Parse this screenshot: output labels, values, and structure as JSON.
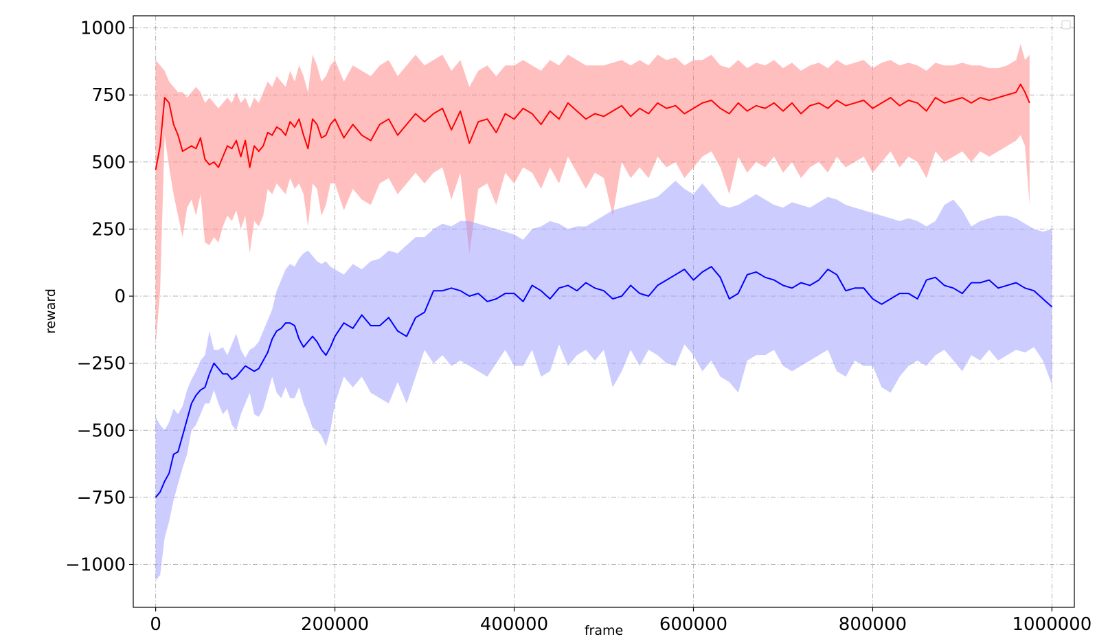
{
  "chart_data": {
    "type": "line",
    "title": "",
    "xlabel": "frame",
    "ylabel": "reward",
    "xlim": [
      -25000,
      1025000
    ],
    "ylim": [
      -1160,
      1045
    ],
    "grid": true,
    "grid_style": "dash-dot",
    "legend": {
      "placement": "top-right",
      "entries": []
    },
    "x_ticks": [
      {
        "value": 0,
        "label": "0"
      },
      {
        "value": 200000,
        "label": "200000"
      },
      {
        "value": 400000,
        "label": "400000"
      },
      {
        "value": 600000,
        "label": "600000"
      },
      {
        "value": 800000,
        "label": "800000"
      },
      {
        "value": 1000000,
        "label": "1000000"
      }
    ],
    "y_ticks": [
      {
        "value": 1000,
        "label": "1000"
      },
      {
        "value": 750,
        "label": "750"
      },
      {
        "value": 500,
        "label": "500"
      },
      {
        "value": 250,
        "label": "250"
      },
      {
        "value": 0,
        "label": "0"
      },
      {
        "value": -250,
        "label": "−250"
      },
      {
        "value": -500,
        "label": "−500"
      },
      {
        "value": -750,
        "label": "−750"
      },
      {
        "value": -1000,
        "label": "−1000"
      }
    ],
    "series": [
      {
        "color": "#ff0000",
        "band_color": "#ff8080",
        "x": [
          0,
          5000,
          10000,
          15000,
          20000,
          25000,
          30000,
          35000,
          40000,
          45000,
          50000,
          55000,
          60000,
          65000,
          70000,
          75000,
          80000,
          85000,
          90000,
          95000,
          100000,
          105000,
          110000,
          115000,
          120000,
          125000,
          130000,
          135000,
          140000,
          145000,
          150000,
          155000,
          160000,
          165000,
          170000,
          175000,
          180000,
          185000,
          190000,
          195000,
          200000,
          210000,
          220000,
          230000,
          240000,
          250000,
          260000,
          270000,
          280000,
          290000,
          300000,
          310000,
          320000,
          330000,
          340000,
          350000,
          360000,
          370000,
          380000,
          390000,
          400000,
          410000,
          420000,
          430000,
          440000,
          450000,
          460000,
          470000,
          480000,
          490000,
          500000,
          510000,
          520000,
          530000,
          540000,
          550000,
          560000,
          570000,
          580000,
          590000,
          600000,
          610000,
          620000,
          630000,
          640000,
          650000,
          660000,
          670000,
          680000,
          690000,
          700000,
          710000,
          720000,
          730000,
          740000,
          750000,
          760000,
          770000,
          780000,
          790000,
          800000,
          810000,
          820000,
          830000,
          840000,
          850000,
          860000,
          870000,
          880000,
          890000,
          900000,
          910000,
          920000,
          930000,
          940000,
          950000,
          960000,
          965000,
          970000,
          975000
        ],
        "mean": [
          470,
          560,
          740,
          720,
          640,
          600,
          540,
          550,
          560,
          550,
          590,
          510,
          490,
          500,
          480,
          520,
          560,
          550,
          580,
          520,
          580,
          480,
          560,
          540,
          560,
          610,
          600,
          630,
          620,
          600,
          650,
          630,
          660,
          600,
          550,
          660,
          640,
          590,
          600,
          640,
          660,
          590,
          640,
          600,
          580,
          640,
          660,
          600,
          640,
          680,
          650,
          680,
          700,
          620,
          690,
          570,
          650,
          660,
          610,
          680,
          660,
          700,
          680,
          640,
          690,
          660,
          720,
          690,
          660,
          680,
          670,
          690,
          710,
          670,
          700,
          680,
          720,
          700,
          710,
          680,
          700,
          720,
          730,
          700,
          680,
          720,
          690,
          710,
          700,
          720,
          690,
          720,
          680,
          710,
          720,
          700,
          730,
          710,
          720,
          730,
          700,
          720,
          740,
          710,
          730,
          720,
          690,
          740,
          720,
          730,
          740,
          720,
          740,
          730,
          740,
          750,
          760,
          790,
          760,
          720
        ],
        "upper": [
          880,
          860,
          840,
          800,
          780,
          760,
          760,
          740,
          760,
          780,
          760,
          720,
          740,
          720,
          700,
          720,
          740,
          720,
          760,
          720,
          740,
          700,
          740,
          720,
          760,
          800,
          780,
          820,
          800,
          780,
          840,
          800,
          860,
          820,
          760,
          900,
          860,
          800,
          820,
          860,
          880,
          800,
          860,
          840,
          820,
          860,
          880,
          820,
          860,
          900,
          860,
          880,
          900,
          840,
          880,
          780,
          840,
          860,
          820,
          860,
          860,
          880,
          860,
          840,
          880,
          860,
          900,
          880,
          860,
          860,
          860,
          870,
          880,
          860,
          880,
          860,
          900,
          880,
          890,
          860,
          880,
          880,
          900,
          860,
          850,
          880,
          850,
          870,
          860,
          880,
          850,
          870,
          840,
          860,
          870,
          850,
          880,
          860,
          870,
          880,
          850,
          870,
          880,
          860,
          870,
          860,
          840,
          870,
          860,
          860,
          870,
          860,
          860,
          850,
          850,
          860,
          880,
          940,
          880,
          900
        ],
        "lower": [
          -180,
          20,
          600,
          480,
          380,
          300,
          220,
          330,
          360,
          300,
          380,
          200,
          190,
          220,
          200,
          260,
          300,
          280,
          320,
          250,
          300,
          160,
          280,
          260,
          300,
          400,
          380,
          420,
          400,
          380,
          440,
          400,
          420,
          380,
          260,
          420,
          400,
          300,
          340,
          420,
          420,
          320,
          400,
          360,
          340,
          420,
          440,
          380,
          420,
          460,
          420,
          460,
          480,
          360,
          460,
          160,
          400,
          420,
          340,
          460,
          420,
          480,
          460,
          400,
          480,
          420,
          520,
          460,
          400,
          460,
          440,
          300,
          500,
          440,
          480,
          440,
          520,
          480,
          500,
          440,
          480,
          520,
          540,
          480,
          380,
          520,
          460,
          500,
          480,
          520,
          460,
          500,
          440,
          480,
          500,
          460,
          520,
          480,
          500,
          520,
          460,
          500,
          540,
          480,
          520,
          500,
          440,
          540,
          500,
          520,
          540,
          500,
          540,
          520,
          540,
          560,
          580,
          600,
          560,
          340
        ]
      },
      {
        "color": "#0000ff",
        "band_color": "#9999ff",
        "x": [
          0,
          5000,
          10000,
          15000,
          20000,
          25000,
          30000,
          35000,
          40000,
          45000,
          50000,
          55000,
          60000,
          65000,
          70000,
          75000,
          80000,
          85000,
          90000,
          95000,
          100000,
          105000,
          110000,
          115000,
          120000,
          125000,
          130000,
          135000,
          140000,
          145000,
          150000,
          155000,
          160000,
          165000,
          170000,
          175000,
          180000,
          185000,
          190000,
          195000,
          200000,
          210000,
          220000,
          230000,
          240000,
          250000,
          260000,
          270000,
          280000,
          290000,
          300000,
          310000,
          320000,
          330000,
          340000,
          350000,
          360000,
          370000,
          380000,
          390000,
          400000,
          410000,
          420000,
          430000,
          440000,
          450000,
          460000,
          470000,
          480000,
          490000,
          500000,
          510000,
          520000,
          530000,
          540000,
          550000,
          560000,
          570000,
          580000,
          590000,
          600000,
          610000,
          620000,
          630000,
          640000,
          650000,
          660000,
          670000,
          680000,
          690000,
          700000,
          710000,
          720000,
          730000,
          740000,
          750000,
          760000,
          770000,
          780000,
          790000,
          800000,
          810000,
          820000,
          830000,
          840000,
          850000,
          860000,
          870000,
          880000,
          890000,
          900000,
          910000,
          920000,
          930000,
          940000,
          950000,
          960000,
          970000,
          980000,
          990000,
          1000000
        ],
        "mean": [
          -750,
          -730,
          -690,
          -660,
          -590,
          -580,
          -520,
          -460,
          -400,
          -370,
          -350,
          -340,
          -290,
          -250,
          -270,
          -290,
          -290,
          -310,
          -300,
          -280,
          -260,
          -270,
          -280,
          -270,
          -240,
          -210,
          -160,
          -130,
          -120,
          -100,
          -100,
          -110,
          -160,
          -190,
          -170,
          -150,
          -170,
          -200,
          -220,
          -190,
          -150,
          -100,
          -120,
          -70,
          -110,
          -110,
          -80,
          -130,
          -150,
          -80,
          -60,
          20,
          20,
          30,
          20,
          0,
          10,
          -20,
          -10,
          10,
          10,
          -20,
          40,
          20,
          -10,
          30,
          40,
          20,
          50,
          30,
          20,
          -10,
          0,
          40,
          10,
          0,
          40,
          60,
          80,
          100,
          60,
          90,
          110,
          70,
          -10,
          10,
          80,
          90,
          70,
          60,
          40,
          30,
          50,
          40,
          60,
          100,
          80,
          20,
          30,
          30,
          -10,
          -30,
          -10,
          10,
          10,
          -10,
          60,
          70,
          40,
          30,
          10,
          50,
          50,
          60,
          30,
          40,
          50,
          30,
          20,
          -10,
          -40
        ],
        "upper": [
          -450,
          -480,
          -500,
          -470,
          -420,
          -440,
          -410,
          -350,
          -310,
          -280,
          -240,
          -220,
          -130,
          -200,
          -200,
          -190,
          -220,
          -180,
          -140,
          -200,
          -230,
          -200,
          -190,
          -170,
          -130,
          -90,
          -50,
          20,
          60,
          100,
          120,
          110,
          140,
          160,
          170,
          150,
          130,
          120,
          130,
          110,
          100,
          80,
          120,
          100,
          130,
          140,
          170,
          160,
          190,
          220,
          220,
          250,
          270,
          260,
          280,
          280,
          270,
          260,
          250,
          240,
          230,
          210,
          250,
          260,
          280,
          270,
          250,
          260,
          260,
          280,
          300,
          320,
          330,
          340,
          350,
          360,
          370,
          400,
          430,
          400,
          380,
          420,
          380,
          340,
          330,
          340,
          360,
          380,
          360,
          340,
          330,
          350,
          340,
          330,
          350,
          370,
          360,
          340,
          330,
          320,
          310,
          300,
          290,
          280,
          290,
          280,
          260,
          280,
          340,
          360,
          320,
          260,
          280,
          290,
          300,
          300,
          290,
          270,
          250,
          240,
          250
        ],
        "lower": [
          -1060,
          -1040,
          -900,
          -840,
          -760,
          -700,
          -640,
          -590,
          -500,
          -480,
          -440,
          -400,
          -400,
          -350,
          -400,
          -440,
          -420,
          -480,
          -500,
          -440,
          -400,
          -360,
          -440,
          -450,
          -420,
          -360,
          -300,
          -360,
          -380,
          -340,
          -380,
          -380,
          -340,
          -400,
          -440,
          -490,
          -500,
          -520,
          -560,
          -500,
          -400,
          -300,
          -340,
          -300,
          -360,
          -380,
          -400,
          -320,
          -400,
          -300,
          -200,
          -250,
          -220,
          -260,
          -240,
          -260,
          -280,
          -300,
          -250,
          -200,
          -260,
          -260,
          -200,
          -300,
          -280,
          -180,
          -260,
          -220,
          -200,
          -240,
          -200,
          -340,
          -280,
          -200,
          -260,
          -200,
          -220,
          -250,
          -260,
          -180,
          -220,
          -280,
          -240,
          -300,
          -320,
          -360,
          -240,
          -220,
          -220,
          -200,
          -260,
          -280,
          -260,
          -240,
          -220,
          -200,
          -280,
          -300,
          -240,
          -260,
          -260,
          -340,
          -360,
          -300,
          -260,
          -240,
          -260,
          -220,
          -200,
          -240,
          -280,
          -220,
          -240,
          -200,
          -240,
          -220,
          -200,
          -210,
          -190,
          -240,
          -330
        ]
      }
    ]
  }
}
